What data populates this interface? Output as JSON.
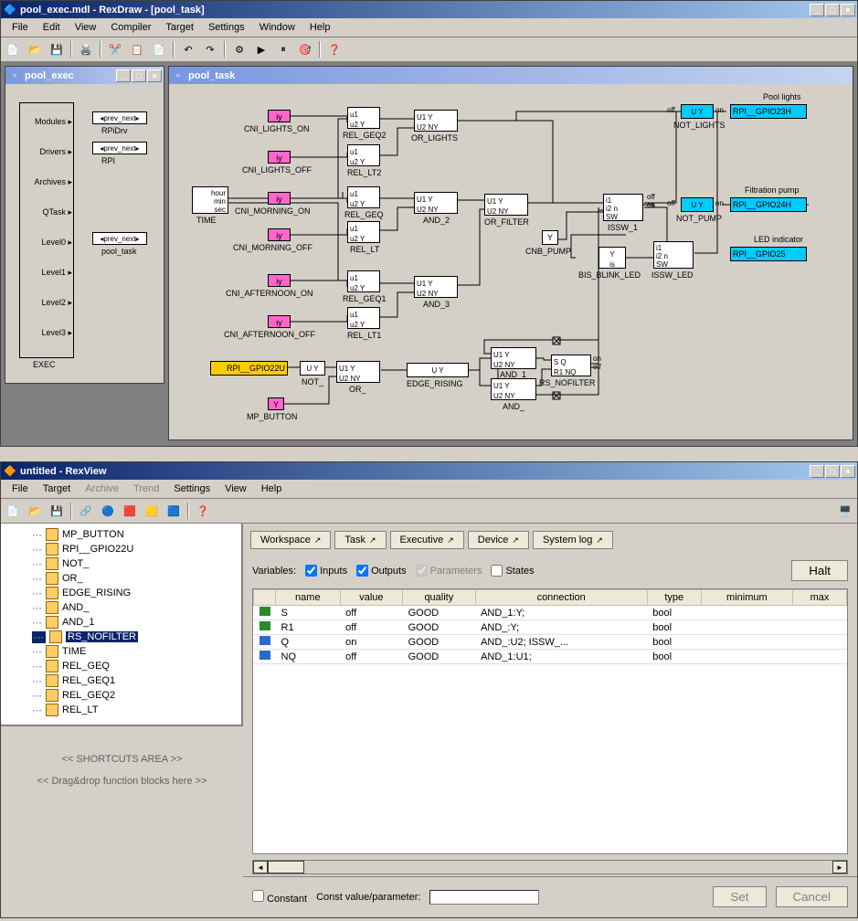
{
  "rexdraw": {
    "title": "pool_exec.mdl - RexDraw - [pool_task]",
    "menu": [
      "File",
      "Edit",
      "View",
      "Compiler",
      "Target",
      "Settings",
      "Window",
      "Help"
    ],
    "toolbar_icons": [
      "new",
      "open",
      "save",
      "sep",
      "print",
      "sep",
      "cut",
      "copy",
      "paste",
      "sep",
      "undo",
      "redo",
      "sep",
      "compile",
      "run1",
      "run2",
      "target",
      "sep",
      "help"
    ],
    "child_exec": {
      "title": "pool_exec",
      "box_label": "EXEC",
      "rows_left": [
        "Modules",
        "Drivers",
        "Archives",
        "QTask",
        "Level0",
        "Level1",
        "Level2",
        "Level3"
      ],
      "rows_right": [
        {
          "label": "RPiDrv",
          "conn": "prev_next"
        },
        {
          "label": "RPI",
          "conn": "prev_next"
        },
        {
          "label": "",
          "conn": ""
        },
        {
          "label": "",
          "conn": ""
        },
        {
          "label": "pool_task",
          "conn": "prev_next"
        },
        {
          "label": "",
          "conn": ""
        },
        {
          "label": "",
          "conn": ""
        },
        {
          "label": "",
          "conn": ""
        }
      ]
    },
    "child_task": {
      "title": "pool_task",
      "blocks": {
        "time": {
          "label": "TIME",
          "ports": "hour\nmin\nsec"
        },
        "cni_lights_on": {
          "color": "magenta",
          "label": "CNI_LIGHTS_ON",
          "text": "iy"
        },
        "cni_lights_off": {
          "color": "magenta",
          "label": "CNI_LIGHTS_OFF",
          "text": "iy"
        },
        "cni_morning_on": {
          "color": "magenta",
          "label": "CNI_MORNING_ON",
          "text": "iy"
        },
        "cni_morning_off": {
          "color": "magenta",
          "label": "CNI_MORNING_OFF",
          "text": "iy"
        },
        "cni_afternoon_on": {
          "color": "magenta",
          "label": "CNI_AFTERNOON_ON",
          "text": "iy"
        },
        "cni_afternoon_off": {
          "color": "magenta",
          "label": "CNI_AFTERNOON_OFF",
          "text": "iy"
        },
        "rel_geq2": {
          "label": "REL_GEQ2",
          "ports": "u1\nu2 Y"
        },
        "rel_lt2": {
          "label": "REL_LT2",
          "ports": "u1\nu2 Y"
        },
        "rel_geq": {
          "label": "REL_GEQ",
          "ports": "u1\nu2 Y"
        },
        "rel_lt": {
          "label": "REL_LT",
          "ports": "u1\nu2 Y"
        },
        "rel_geq1": {
          "label": "REL_GEQ1",
          "ports": "u1\nu2 Y"
        },
        "rel_lt1": {
          "label": "REL_LT1",
          "ports": "u1\nu2 Y"
        },
        "or_lights": {
          "label": "OR_LIGHTS",
          "ports": "U1  Y\nU2 NY"
        },
        "and_2": {
          "label": "AND_2",
          "ports": "U1  Y\nU2 NY"
        },
        "and_3": {
          "label": "AND_3",
          "ports": "U1  Y\nU2 NY"
        },
        "or_filter": {
          "label": "OR_FILTER",
          "ports": "U1  Y\nU2 NY"
        },
        "cnb_pump": {
          "label": "CNB_PUMP",
          "text": "Y"
        },
        "issw_1": {
          "label": "ISSW_1",
          "ports": "i1\ni2  n\nSW"
        },
        "bis_blink_led": {
          "label": "BIS_BLINK_LED",
          "text": "Y\nis"
        },
        "issw_led": {
          "label": "ISSW_LED",
          "ports": "i1\ni2  n\nSW"
        },
        "not_lights": {
          "color": "cyan",
          "label": "NOT_LIGHTS",
          "ports": "U  Y"
        },
        "not_pump": {
          "color": "cyan",
          "label": "NOT_PUMP",
          "ports": "U  Y"
        },
        "rpi_gpio23h": {
          "color": "cyan",
          "label": "RPI__GPIO23H",
          "title": "Pool lights"
        },
        "rpi_gpio24h": {
          "color": "cyan",
          "label": "RPI__GPIO24H",
          "title": "Filtration pump"
        },
        "rpi_gpio25": {
          "color": "cyan",
          "label": "RPI__GPIO25",
          "title": "LED indicator"
        },
        "rpi_gpio22u": {
          "color": "yellow",
          "label": "RPI__GPIO22U"
        },
        "not_": {
          "label": "NOT_",
          "ports": "U  Y"
        },
        "mp_button": {
          "color": "magenta",
          "label": "MP_BUTTON",
          "text": "Y"
        },
        "or_": {
          "label": "OR_",
          "ports": "U1  Y\nU2 NY"
        },
        "edge_rising": {
          "label": "EDGE_RISING",
          "ports": "U  Y"
        },
        "and_1": {
          "label": "AND_1",
          "ports": "U1  Y\nU2 NY"
        },
        "and_": {
          "label": "AND_",
          "ports": "U1  Y\nU2 NY"
        },
        "rs_nofilter": {
          "label": "RS_NOFILTER",
          "ports": "S    Q\nR1 NQ"
        }
      },
      "port_labels": {
        "off": "off",
        "on": "on"
      }
    }
  },
  "rexview": {
    "title": "untitled - RexView",
    "menu": [
      "File",
      "Target",
      "Archive",
      "Trend",
      "Settings",
      "View",
      "Help"
    ],
    "menu_disabled": [
      "Archive",
      "Trend"
    ],
    "tree": [
      "MP_BUTTON",
      "RPI__GPIO22U",
      "NOT_",
      "OR_",
      "EDGE_RISING",
      "AND_",
      "AND_1",
      "RS_NOFILTER",
      "TIME",
      "REL_GEQ",
      "REL_GEQ1",
      "REL_GEQ2",
      "REL_LT"
    ],
    "tree_selected": "RS_NOFILTER",
    "shortcuts": {
      "line1": "<< SHORTCUTS AREA >>",
      "line2": "<< Drag&drop function blocks here >>"
    },
    "tabs": [
      "Workspace",
      "Task",
      "Executive",
      "Device",
      "System log"
    ],
    "vars": {
      "label": "Variables:",
      "inputs": "Inputs",
      "outputs": "Outputs",
      "parameters": "Parameters",
      "states": "States",
      "halt": "Halt"
    },
    "table": {
      "headers": [
        "name",
        "value",
        "quality",
        "connection",
        "type",
        "minimum",
        "max"
      ],
      "rows": [
        {
          "io": "in",
          "name": "S",
          "value": "off",
          "quality": "GOOD",
          "connection": "AND_1:Y;",
          "type": "bool",
          "min": "",
          "max": ""
        },
        {
          "io": "in",
          "name": "R1",
          "value": "off",
          "quality": "GOOD",
          "connection": "AND_:Y;",
          "type": "bool",
          "min": "",
          "max": ""
        },
        {
          "io": "out",
          "name": "Q",
          "value": "on",
          "quality": "GOOD",
          "connection": "AND_:U2; ISSW_...",
          "type": "bool",
          "min": "",
          "max": ""
        },
        {
          "io": "out",
          "name": "NQ",
          "value": "off",
          "quality": "GOOD",
          "connection": "AND_1:U1;",
          "type": "bool",
          "min": "",
          "max": ""
        }
      ]
    },
    "bottom": {
      "constant": "Constant",
      "constval": "Const value/parameter:",
      "set": "Set",
      "cancel": "Cancel"
    }
  }
}
